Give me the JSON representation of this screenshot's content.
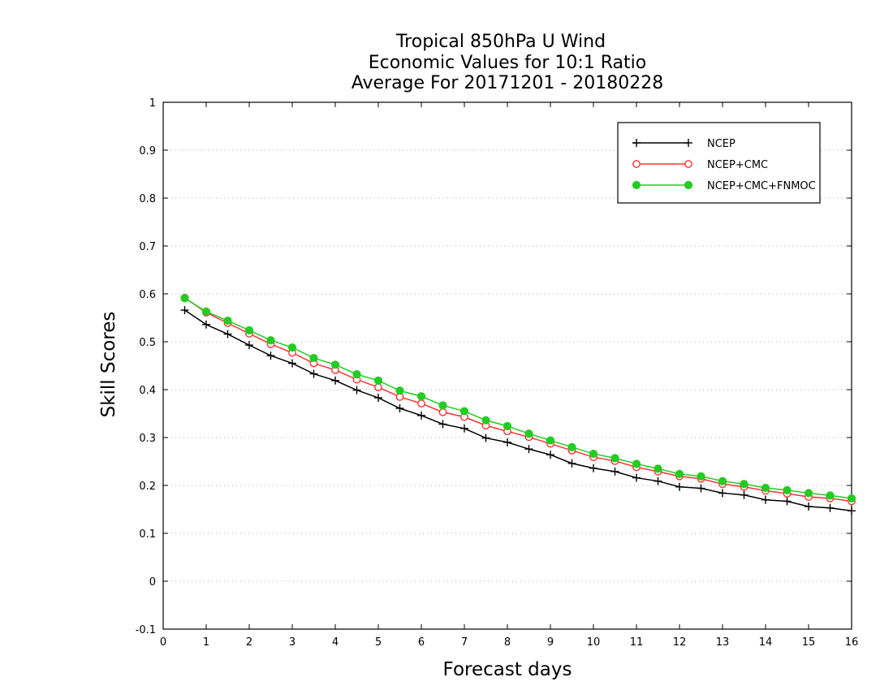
{
  "chart_data": {
    "type": "line",
    "title_lines": [
      "Tropical 850hPa U Wind",
      "Economic Values for 10:1 Ratio",
      "Average For 20171201 - 20180228"
    ],
    "xlabel": "Forecast days",
    "ylabel": "Skill Scores",
    "xlim": [
      0,
      16
    ],
    "ylim": [
      -0.1,
      1
    ],
    "x_ticks": [
      "0",
      "1",
      "2",
      "3",
      "4",
      "5",
      "6",
      "7",
      "8",
      "9",
      "10",
      "11",
      "12",
      "13",
      "14",
      "15",
      "16"
    ],
    "y_ticks": [
      "-0.1",
      "0",
      "0.1",
      "0.2",
      "0.3",
      "0.4",
      "0.5",
      "0.6",
      "0.7",
      "0.8",
      "0.9",
      "1"
    ],
    "grid": "horizontal dotted",
    "legend_position": "top-right",
    "x": [
      0.5,
      1.0,
      1.5,
      2.0,
      2.5,
      3.0,
      3.5,
      4.0,
      4.5,
      5.0,
      5.5,
      6.0,
      6.5,
      7.0,
      7.5,
      8.0,
      8.5,
      9.0,
      9.5,
      10.0,
      10.5,
      11.0,
      11.5,
      12.0,
      12.5,
      13.0,
      13.5,
      14.0,
      14.5,
      15.0,
      15.5,
      16.0
    ],
    "series": [
      {
        "name": "NCEP",
        "color": "#000000",
        "marker": "plus",
        "values": [
          0.566,
          0.536,
          0.516,
          0.493,
          0.471,
          0.455,
          0.433,
          0.419,
          0.399,
          0.383,
          0.361,
          0.346,
          0.328,
          0.319,
          0.299,
          0.29,
          0.276,
          0.264,
          0.246,
          0.236,
          0.229,
          0.216,
          0.209,
          0.197,
          0.194,
          0.184,
          0.18,
          0.17,
          0.167,
          0.156,
          0.153,
          0.147
        ]
      },
      {
        "name": "NCEP+CMC",
        "color": "#ff3333",
        "marker": "open-circle",
        "values": [
          0.592,
          0.561,
          0.539,
          0.517,
          0.495,
          0.477,
          0.455,
          0.441,
          0.421,
          0.405,
          0.385,
          0.371,
          0.353,
          0.343,
          0.325,
          0.313,
          0.301,
          0.287,
          0.273,
          0.259,
          0.251,
          0.238,
          0.229,
          0.219,
          0.214,
          0.203,
          0.197,
          0.189,
          0.183,
          0.176,
          0.173,
          0.167
        ]
      },
      {
        "name": "NCEP+CMC+FNMOC",
        "color": "#22cc22",
        "marker": "filled-circle",
        "values": [
          0.591,
          0.563,
          0.544,
          0.524,
          0.503,
          0.488,
          0.466,
          0.452,
          0.432,
          0.419,
          0.398,
          0.386,
          0.367,
          0.355,
          0.336,
          0.324,
          0.308,
          0.294,
          0.28,
          0.266,
          0.257,
          0.245,
          0.235,
          0.224,
          0.219,
          0.209,
          0.203,
          0.195,
          0.19,
          0.184,
          0.179,
          0.173
        ]
      }
    ]
  }
}
